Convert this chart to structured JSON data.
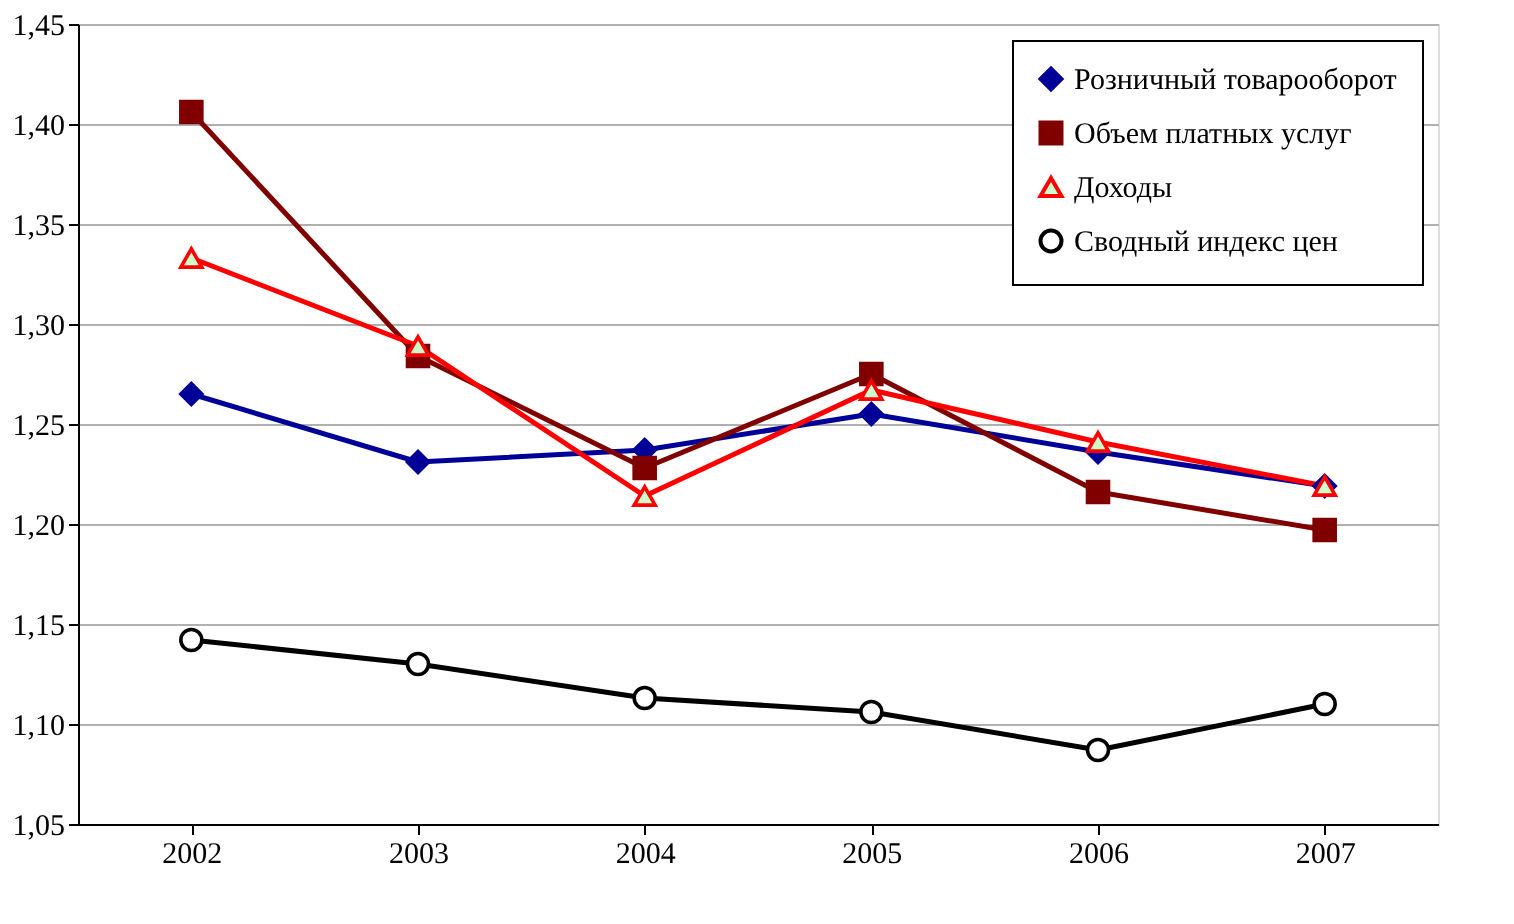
{
  "chart_data": {
    "type": "line",
    "categories": [
      "2002",
      "2003",
      "2004",
      "2005",
      "2006",
      "2007"
    ],
    "series": [
      {
        "name": "Розничный товарооборот",
        "color": "#000099",
        "marker": "diamond",
        "values": [
          1.265,
          1.231,
          1.237,
          1.255,
          1.236,
          1.219
        ]
      },
      {
        "name": "Объем платных услуг",
        "color": "#800000",
        "marker": "square",
        "values": [
          1.406,
          1.284,
          1.228,
          1.275,
          1.216,
          1.197
        ]
      },
      {
        "name": "Доходы",
        "color": "#ff0000",
        "marker": "triangle",
        "values": [
          1.333,
          1.289,
          1.214,
          1.267,
          1.241,
          1.219
        ]
      },
      {
        "name": "Сводный индекс цен",
        "color": "#000000",
        "marker": "circle",
        "values": [
          1.142,
          1.13,
          1.113,
          1.106,
          1.087,
          1.11
        ]
      }
    ],
    "ylim": [
      1.05,
      1.45
    ],
    "yticks": [
      {
        "value": 1.05,
        "label": "1,05"
      },
      {
        "value": 1.1,
        "label": "1,10"
      },
      {
        "value": 1.15,
        "label": "1,15"
      },
      {
        "value": 1.2,
        "label": "1,20"
      },
      {
        "value": 1.25,
        "label": "1,25"
      },
      {
        "value": 1.3,
        "label": "1,30"
      },
      {
        "value": 1.35,
        "label": "1,35"
      },
      {
        "value": 1.4,
        "label": "1,40"
      },
      {
        "value": 1.45,
        "label": "1,45"
      }
    ],
    "grid": "y",
    "legend": "top right",
    "line_style": "solid"
  }
}
